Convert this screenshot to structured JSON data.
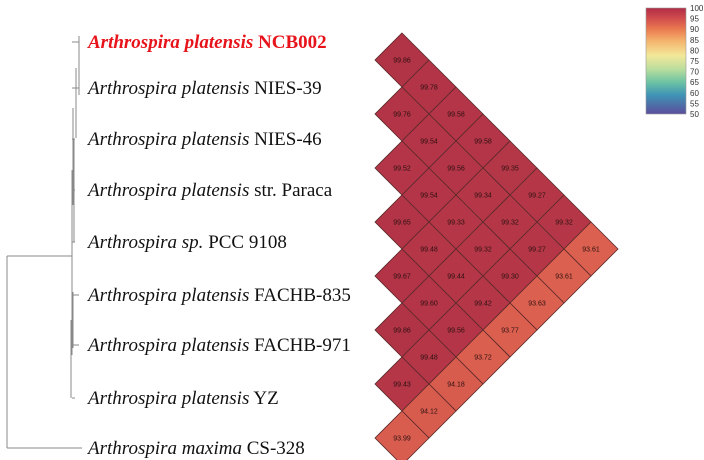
{
  "taxa": [
    {
      "genus": "Arthrospira",
      "species": "platensis",
      "strain": "NCB002",
      "highlight": true
    },
    {
      "genus": "Arthrospira",
      "species": "platensis",
      "strain": "NIES-39"
    },
    {
      "genus": "Arthrospira",
      "species": "platensis",
      "strain": "NIES-46"
    },
    {
      "genus": "Arthrospira",
      "species": "platensis",
      "strain": "str. Paraca"
    },
    {
      "genus": "Arthrospira",
      "species": "sp.",
      "strain": "PCC 9108"
    },
    {
      "genus": "Arthrospira",
      "species": "platensis",
      "strain": "FACHB-835"
    },
    {
      "genus": "Arthrospira",
      "species": "platensis",
      "strain": "FACHB-971"
    },
    {
      "genus": "Arthrospira",
      "species": "platensis",
      "strain": "YZ"
    },
    {
      "genus": "Arthrospira",
      "species": "maxima",
      "strain": "CS-328"
    }
  ],
  "colors": {
    "highlight": "#e8141c",
    "tree": "#888888"
  },
  "chart_data": {
    "type": "heatmap",
    "rows": [
      [
        "99.86"
      ],
      [
        "99.78",
        "99.76"
      ],
      [
        "99.58",
        "99.54",
        "99.52"
      ],
      [
        "99.58",
        "99.56",
        "99.54",
        "99.65"
      ],
      [
        "99.35",
        "99.34",
        "99.33",
        "99.48",
        "99.67"
      ],
      [
        "99.27",
        "99.32",
        "99.32",
        "99.44",
        "99.60",
        "99.86"
      ],
      [
        "99.32",
        "99.27",
        "99.30",
        "99.42",
        "99.56",
        "99.48",
        "99.43"
      ],
      [
        "93.61",
        "93.61",
        "93.63",
        "93.77",
        "93.72",
        "94.18",
        "94.12",
        "93.99"
      ]
    ],
    "scale": {
      "ticks": [
        "100",
        "95",
        "90",
        "85",
        "80",
        "75",
        "70",
        "65",
        "60",
        "55",
        "50"
      ],
      "min": 50,
      "max": 100
    }
  }
}
